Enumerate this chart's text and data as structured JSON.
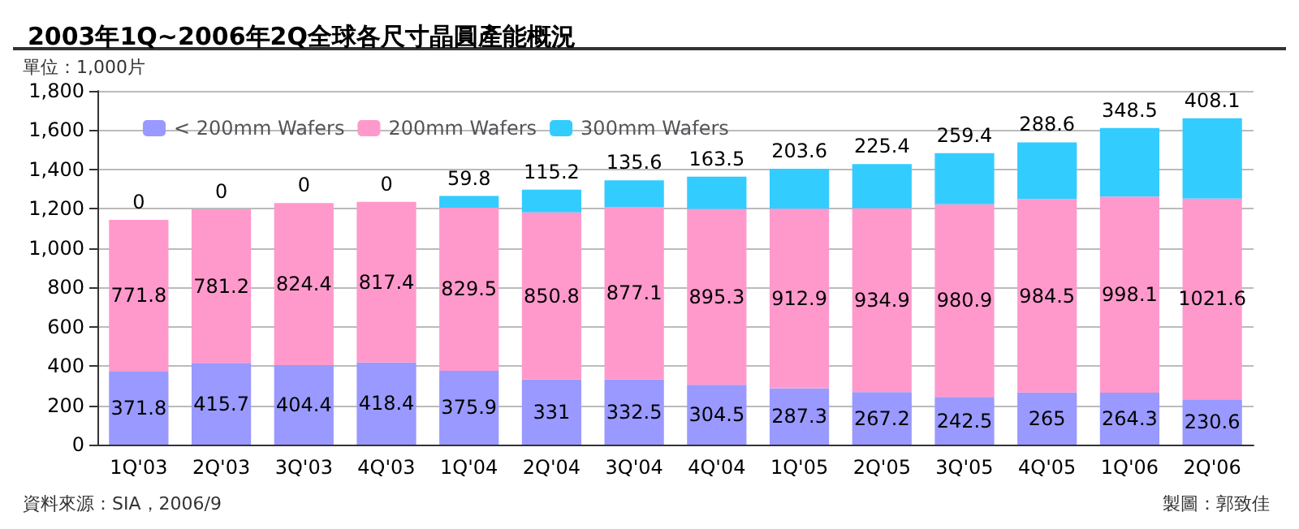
{
  "chart_data": {
    "type": "bar",
    "stacked": true,
    "title": "2003年1Q~2006年2Q全球各尺寸晶圓產能概況",
    "ylabel": "單位：1,000片",
    "annotations": [
      "資料來源：SIA，2006/9",
      "製圖：郭致佳"
    ],
    "categories": [
      "1Q'03",
      "2Q'03",
      "3Q'03",
      "4Q'03",
      "1Q'04",
      "2Q'04",
      "3Q'04",
      "4Q'04",
      "1Q'05",
      "2Q'05",
      "3Q'05",
      "4Q'05",
      "1Q'06",
      "2Q'06"
    ],
    "series": [
      {
        "name": "< 200mm Wafers",
        "color": "#9999ff",
        "values": [
          371.8,
          415.7,
          404.4,
          418.4,
          375.9,
          331,
          332.5,
          304.5,
          287.3,
          267.2,
          242.5,
          265,
          264.3,
          230.6
        ]
      },
      {
        "name": "200mm Wafers",
        "color": "#ff99cc",
        "values": [
          771.8,
          781.2,
          824.4,
          817.4,
          829.5,
          850.8,
          877.1,
          895.3,
          912.9,
          934.9,
          980.9,
          984.5,
          998.1,
          1021.6
        ]
      },
      {
        "name": "300mm Wafers",
        "color": "#33ccff",
        "values": [
          0,
          0,
          0,
          0,
          59.8,
          115.2,
          135.6,
          163.5,
          203.6,
          225.4,
          259.4,
          288.6,
          348.5,
          408.1
        ]
      }
    ],
    "ylim": [
      0,
      1800
    ],
    "yticks": [
      0,
      200,
      400,
      600,
      800,
      {
        "value": 1000,
        "label": "1,000"
      },
      {
        "value": 1200,
        "label": "1,200"
      },
      {
        "value": 1400,
        "label": "1,400"
      },
      {
        "value": 1600,
        "label": "1,600"
      },
      {
        "value": 1800,
        "label": "1,800"
      }
    ],
    "grid": "y",
    "legend": "top left",
    "data_labels": true
  }
}
